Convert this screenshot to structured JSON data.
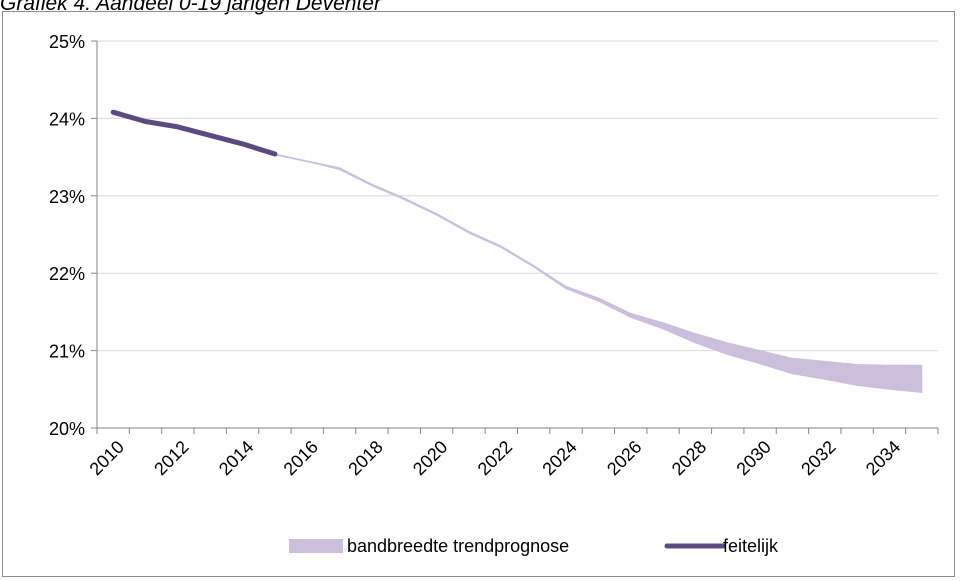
{
  "chart_data": {
    "type": "area",
    "title": "Grafiek 4. Aandeel 0-19 jarigen Deventer",
    "xlabel": "",
    "ylabel": "",
    "x_ticks": [
      "2010",
      "2012",
      "2014",
      "2016",
      "2018",
      "2020",
      "2022",
      "2024",
      "2026",
      "2028",
      "2030",
      "2032",
      "2034"
    ],
    "y_ticks": [
      "20%",
      "21%",
      "22%",
      "23%",
      "24%",
      "25%"
    ],
    "xlim": [
      2009.5,
      2035.5
    ],
    "ylim": [
      20,
      25
    ],
    "grid": "horizontal",
    "legend_position": "bottom",
    "series": [
      {
        "name": "bandbreedte trendprognose",
        "kind": "band",
        "color": "#cbbfdc",
        "x": [
          2015,
          2016,
          2017,
          2018,
          2019,
          2020,
          2021,
          2022,
          2023,
          2024,
          2025,
          2026,
          2027,
          2028,
          2029,
          2030,
          2031,
          2032,
          2033,
          2034,
          2035
        ],
        "lower": [
          23.53,
          23.44,
          23.34,
          23.13,
          22.95,
          22.75,
          22.52,
          22.33,
          22.08,
          21.8,
          21.64,
          21.43,
          21.28,
          21.1,
          20.95,
          20.83,
          20.7,
          20.63,
          20.55,
          20.5,
          20.46
        ],
        "upper": [
          23.54,
          23.45,
          23.36,
          23.15,
          22.97,
          22.77,
          22.54,
          22.35,
          22.1,
          21.83,
          21.68,
          21.48,
          21.36,
          21.22,
          21.1,
          21.0,
          20.9,
          20.86,
          20.82,
          20.81,
          20.81
        ]
      },
      {
        "name": "feitelijk",
        "kind": "line",
        "color": "#5b4a7f",
        "x": [
          2010,
          2011,
          2012,
          2013,
          2014,
          2015
        ],
        "y": [
          24.08,
          23.96,
          23.89,
          23.78,
          23.67,
          23.54
        ]
      }
    ]
  }
}
